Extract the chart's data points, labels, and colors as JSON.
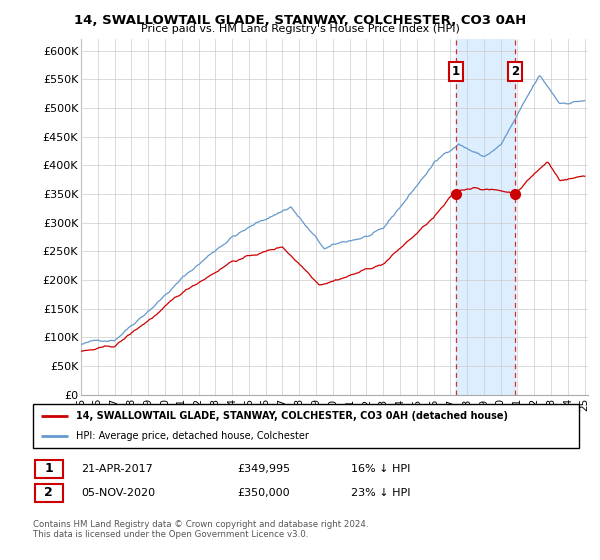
{
  "title": "14, SWALLOWTAIL GLADE, STANWAY, COLCHESTER, CO3 0AH",
  "subtitle": "Price paid vs. HM Land Registry's House Price Index (HPI)",
  "legend_line1": "14, SWALLOWTAIL GLADE, STANWAY, COLCHESTER, CO3 0AH (detached house)",
  "legend_line2": "HPI: Average price, detached house, Colchester",
  "annotation1_date": "21-APR-2017",
  "annotation1_price": "£349,995",
  "annotation1_hpi": "16% ↓ HPI",
  "annotation2_date": "05-NOV-2020",
  "annotation2_price": "£350,000",
  "annotation2_hpi": "23% ↓ HPI",
  "footer": "Contains HM Land Registry data © Crown copyright and database right 2024.\nThis data is licensed under the Open Government Licence v3.0.",
  "hpi_color": "#6699cc",
  "price_color": "#cc0000",
  "shade_color": "#ddeeff",
  "vline_color": "#cc3333",
  "ylim": [
    0,
    620000
  ],
  "yticks": [
    0,
    50000,
    100000,
    150000,
    200000,
    250000,
    300000,
    350000,
    400000,
    450000,
    500000,
    550000,
    600000
  ],
  "sale1_year": 2017.31,
  "sale1_value": 349995,
  "sale2_year": 2020.84,
  "sale2_value": 350000,
  "background_color": "#ffffff",
  "grid_color": "#cccccc"
}
